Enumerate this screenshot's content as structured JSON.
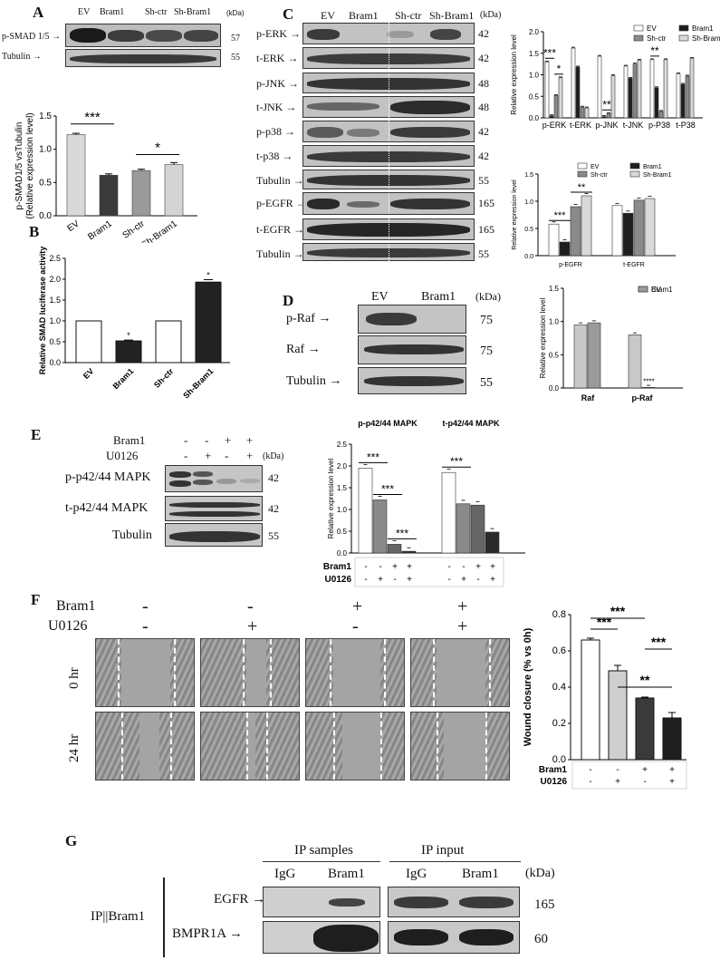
{
  "panels": {
    "A": {
      "letter": "A",
      "blot": {
        "lanes": [
          "EV",
          "Bram1",
          "Sh-ctr",
          "Sh-Bram1"
        ],
        "kda_label": "(kDa)",
        "rows": [
          {
            "name": "p-SMAD 1/5",
            "kda": "57"
          },
          {
            "name": "Tubulin",
            "kda": "55"
          }
        ]
      }
    },
    "B": {
      "letter": "B"
    },
    "C": {
      "letter": "C",
      "blot": {
        "lanes": [
          "EV",
          "Bram1",
          "Sh-ctr",
          "Sh-Bram1"
        ],
        "kda_label": "(kDa)",
        "rows": [
          {
            "name": "p-ERK",
            "kda": "42"
          },
          {
            "name": "t-ERK",
            "kda": "42"
          },
          {
            "name": "p-JNK",
            "kda": "48"
          },
          {
            "name": "t-JNK",
            "kda": "48"
          },
          {
            "name": "p-p38",
            "kda": "42"
          },
          {
            "name": "t-p38",
            "kda": "42"
          },
          {
            "name": "Tubulin",
            "kda": "55"
          },
          {
            "name": "p-EGFR",
            "kda": "165"
          },
          {
            "name": "t-EGFR",
            "kda": "165"
          },
          {
            "name": "Tubulin",
            "kda": "55"
          }
        ]
      }
    },
    "D": {
      "letter": "D",
      "blot": {
        "lanes": [
          "EV",
          "Bram1"
        ],
        "kda_label": "(kDa)",
        "rows": [
          {
            "name": "p-Raf",
            "kda": "75"
          },
          {
            "name": "Raf",
            "kda": "75"
          },
          {
            "name": "Tubulin",
            "kda": "55"
          }
        ]
      }
    },
    "E": {
      "letter": "E",
      "blot": {
        "treat_rows": [
          {
            "name": "Bram1",
            "signs": [
              "-",
              "-",
              "+",
              "+"
            ]
          },
          {
            "name": "U0126",
            "signs": [
              "-",
              "+",
              "-",
              "+"
            ]
          }
        ],
        "kda_label": "(kDa)",
        "rows": [
          {
            "name": "p-p42/44 MAPK",
            "kda": "42"
          },
          {
            "name": "t-p42/44 MAPK",
            "kda": "42"
          },
          {
            "name": "Tubulin",
            "kda": "55"
          }
        ]
      }
    },
    "F": {
      "letter": "F",
      "treat_rows": [
        {
          "name": "Bram1",
          "signs": [
            "-",
            "-",
            "+",
            "+"
          ]
        },
        {
          "name": "U0126",
          "signs": [
            "-",
            "+",
            "-",
            "+"
          ]
        }
      ],
      "time_labels": [
        "0 hr",
        "24 hr"
      ]
    },
    "G": {
      "letter": "G",
      "group_labels": [
        "IP samples",
        "IP input"
      ],
      "lanes": [
        "IgG",
        "Bram1",
        "IgG",
        "Bram1"
      ],
      "kda_label": "(kDa)",
      "side_label": "IP||Bram1",
      "rows": [
        {
          "name": "EGFR",
          "kda": "165"
        },
        {
          "name": "BMPR1A",
          "kda": "60"
        }
      ]
    }
  },
  "chart_data": [
    {
      "id": "A-bar",
      "type": "bar",
      "categories": [
        "EV",
        "Bram1",
        "Sh-ctr",
        "Sh-Bram1"
      ],
      "values": [
        1.22,
        0.61,
        0.68,
        0.77
      ],
      "errors": [
        0.02,
        0.02,
        0.02,
        0.03
      ],
      "colors": [
        "#d9d9d9",
        "#3a3a3a",
        "#9a9a9a",
        "#d4d4d4"
      ],
      "ylabel": "p-SMAD1/5 vsTubulin\n(Relative expression level)",
      "ylim": [
        0,
        1.5
      ],
      "yticks": [
        "0.0",
        "0.5",
        "1.0",
        "1.5"
      ],
      "significance": [
        {
          "from": 0,
          "to": 1,
          "label": "***"
        },
        {
          "from": 2,
          "to": 3,
          "label": "*"
        }
      ]
    },
    {
      "id": "B-bar",
      "type": "bar",
      "categories": [
        "EV",
        "Bram1",
        "Sh-ctr",
        "Sh-Bram1"
      ],
      "values": [
        1.0,
        0.52,
        1.0,
        1.93
      ],
      "errors": [
        0,
        0.02,
        0,
        0.06
      ],
      "colors": [
        "#ffffff",
        "#222222",
        "#ffffff",
        "#222222"
      ],
      "ylabel": "Relative SMAD luciferase activity",
      "ylim": [
        0,
        2.5
      ],
      "yticks": [
        "0.0",
        "0.5",
        "1.0",
        "1.5",
        "2.0",
        "2.5"
      ],
      "bar_marks": [
        "",
        "*",
        "",
        "*"
      ]
    },
    {
      "id": "C-mapk",
      "type": "bar",
      "categories": [
        "p-ERK",
        "t-ERK",
        "p-JNK",
        "t-JNK",
        "p-P38",
        "t-P38"
      ],
      "series": [
        {
          "name": "EV",
          "values": [
            1.3,
            1.62,
            1.43,
            1.2,
            1.35,
            1.02
          ],
          "color": "#ffffff"
        },
        {
          "name": "Bram1",
          "values": [
            0.05,
            1.18,
            0.03,
            0.92,
            0.7,
            0.78
          ],
          "color": "#1e1e1e"
        },
        {
          "name": "Sh-ctr",
          "values": [
            0.52,
            0.25,
            0.1,
            1.25,
            0.15,
            0.97
          ],
          "color": "#8a8a8a"
        },
        {
          "name": "Sh-Bram1",
          "values": [
            0.93,
            0.23,
            0.98,
            1.34,
            1.35,
            1.38
          ],
          "color": "#d9d9d9"
        }
      ],
      "ylabel": "Relative expression level",
      "ylim": [
        0,
        2.0
      ],
      "yticks": [
        "0.0",
        "0.5",
        "1.0",
        "1.5",
        "2.0"
      ],
      "legend": "top-right",
      "significance": [
        {
          "group": 0,
          "from": 0,
          "to": 1,
          "label": "***"
        },
        {
          "group": 0,
          "from": 2,
          "to": 3,
          "label": "*"
        },
        {
          "group": 2,
          "from": 1,
          "to": 2,
          "label": "**"
        },
        {
          "group": 4,
          "from": 0,
          "to": 1,
          "label": "**"
        }
      ]
    },
    {
      "id": "C-egfr",
      "type": "bar",
      "categories": [
        "p-EGFR",
        "t-EGFR"
      ],
      "series": [
        {
          "name": "EV",
          "values": [
            0.58,
            0.92
          ],
          "color": "#ffffff"
        },
        {
          "name": "Bram1",
          "values": [
            0.25,
            0.78
          ],
          "color": "#1e1e1e"
        },
        {
          "name": "Sh-ctr",
          "values": [
            0.9,
            1.02
          ],
          "color": "#8a8a8a"
        },
        {
          "name": "Sh-Bram1",
          "values": [
            1.1,
            1.05
          ],
          "color": "#d9d9d9"
        }
      ],
      "ylabel": "Relative expression level",
      "ylim": [
        0,
        1.5
      ],
      "yticks": [
        "0.0",
        "0.5",
        "1.0",
        "1.5"
      ],
      "legend": "top-right",
      "significance": [
        {
          "group": 0,
          "from": 0,
          "to": 1,
          "label": "***"
        },
        {
          "group": 0,
          "from": 2,
          "to": 3,
          "label": "**"
        }
      ]
    },
    {
      "id": "D-bar",
      "type": "bar",
      "categories": [
        "Raf",
        "p-Raf"
      ],
      "series": [
        {
          "name": "EV",
          "values": [
            0.95,
            0.8
          ],
          "color": "#c8c8c8"
        },
        {
          "name": "Bram1",
          "values": [
            0.98,
            0.01
          ],
          "color": "#9a9a9a"
        }
      ],
      "ylabel": "Relative expression level",
      "ylim": [
        0,
        1.5
      ],
      "yticks": [
        "0.0",
        "0.5",
        "1.0",
        "1.5"
      ],
      "legend": "top-right",
      "significance": [
        {
          "group": 1,
          "from": 1,
          "to": 1,
          "label": "****"
        }
      ]
    },
    {
      "id": "E-bar",
      "type": "bar",
      "categories": [
        "p-p42/44 MAPK",
        "t-p42/44 MAPK"
      ],
      "series": [
        {
          "values": [
            1.95,
            1.85
          ],
          "color": "#ffffff"
        },
        {
          "values": [
            1.22,
            1.13
          ],
          "color": "#8a8a8a"
        },
        {
          "values": [
            0.2,
            1.1
          ],
          "color": "#666666"
        },
        {
          "values": [
            0.04,
            0.48
          ],
          "color": "#2a2a2a"
        }
      ],
      "ylabel": "Relative expression level",
      "ylim": [
        0,
        2.5
      ],
      "yticks": [
        "0.0",
        "0.5",
        "1.0",
        "1.5",
        "2.0",
        "2.5"
      ],
      "treat_rows": [
        {
          "name": "Bram1",
          "signs": [
            "-",
            "-",
            "+",
            "+",
            "-",
            "-",
            "+",
            "+"
          ]
        },
        {
          "name": "U0126",
          "signs": [
            "-",
            "+",
            "-",
            "+",
            "-",
            "+",
            "-",
            "+"
          ]
        }
      ],
      "significance": [
        {
          "group": 0,
          "from": 0,
          "to": 1,
          "label": "***"
        },
        {
          "group": 0,
          "from": 1,
          "to": 2,
          "label": "***"
        },
        {
          "group": 0,
          "from": 2,
          "to": 3,
          "label": "***"
        },
        {
          "group": 1,
          "from": 0,
          "to": 1,
          "label": "***"
        }
      ]
    },
    {
      "id": "F-bar",
      "type": "bar",
      "categories": [
        "1",
        "2",
        "3",
        "4"
      ],
      "values": [
        0.66,
        0.49,
        0.34,
        0.23
      ],
      "errors": [
        0.01,
        0.03,
        0.005,
        0.03
      ],
      "colors": [
        "#ffffff",
        "#cfcfcf",
        "#3a3a3a",
        "#1e1e1e"
      ],
      "ylabel": "Wound closure (% vs 0h)",
      "ylim": [
        0,
        0.8
      ],
      "yticks": [
        "0.0",
        "0.2",
        "0.4",
        "0.6",
        "0.8"
      ],
      "treat_rows": [
        {
          "name": "Bram1",
          "signs": [
            "-",
            "-",
            "+",
            "+"
          ]
        },
        {
          "name": "U0126",
          "signs": [
            "-",
            "+",
            "-",
            "+"
          ]
        }
      ],
      "significance": [
        {
          "from": 0,
          "to": 1,
          "label": "***"
        },
        {
          "from": 0,
          "to": 2,
          "label": "***"
        },
        {
          "from": 1,
          "to": 3,
          "label": "**"
        },
        {
          "from": 2,
          "to": 3,
          "label": "***"
        }
      ]
    }
  ]
}
